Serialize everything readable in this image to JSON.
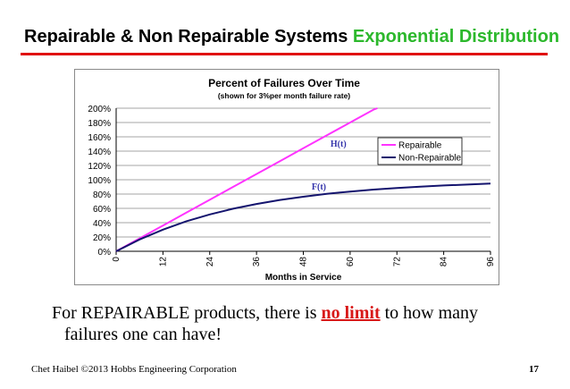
{
  "slide": {
    "title_part1": "Repairable & Non Repairable Systems",
    "title_part2": "Exponential Distribution",
    "body_part1": "For REPAIRABLE products, there is ",
    "body_highlight": "no limit",
    "body_part2": " to how many",
    "body_line2": "failures one can have!",
    "footer_left": "Chet Haibel  ©2013 Hobbs Engineering Corporation",
    "page_number": "17"
  },
  "colors": {
    "title_accent": "#2cb82c",
    "title_rule": "#e01010",
    "highlight": "#d81818",
    "repairable": "#ff33ff",
    "non_repairable": "#14146e",
    "annotation": "#3333aa"
  },
  "chart_data": {
    "type": "line",
    "title": "Percent of Failures Over Time",
    "subtitle": "(shown for 3%per month failure rate)",
    "xlabel": "Months in Service",
    "ylabel": "",
    "x_ticks": [
      0,
      12,
      24,
      36,
      48,
      60,
      72,
      84,
      96
    ],
    "xlim": [
      0,
      96
    ],
    "y_ticks": [
      "0%",
      "20%",
      "40%",
      "60%",
      "80%",
      "100%",
      "120%",
      "140%",
      "160%",
      "180%",
      "200%"
    ],
    "ylim": [
      0,
      200
    ],
    "grid": "horizontal",
    "legend_position": "right",
    "series": [
      {
        "name": "Repairable",
        "x": [
          0,
          6,
          12,
          18,
          24,
          30,
          36,
          42,
          48,
          54,
          60,
          66,
          67
        ],
        "values": [
          0,
          18,
          36,
          54,
          72,
          90,
          108,
          126,
          144,
          162,
          180,
          198,
          200
        ]
      },
      {
        "name": "Non-Repairable",
        "x": [
          0,
          6,
          12,
          18,
          24,
          30,
          36,
          42,
          48,
          54,
          60,
          66,
          72,
          78,
          84,
          90,
          96
        ],
        "values": [
          0,
          16.5,
          30.3,
          42.0,
          51.5,
          59.5,
          66.1,
          71.7,
          76.3,
          80.2,
          83.5,
          86.2,
          88.5,
          90.4,
          92.0,
          93.3,
          94.6
        ]
      }
    ],
    "annotations": [
      {
        "text": "H(t)",
        "x": 57,
        "y": 146
      },
      {
        "text": "F(t)",
        "x": 52,
        "y": 86
      }
    ]
  }
}
